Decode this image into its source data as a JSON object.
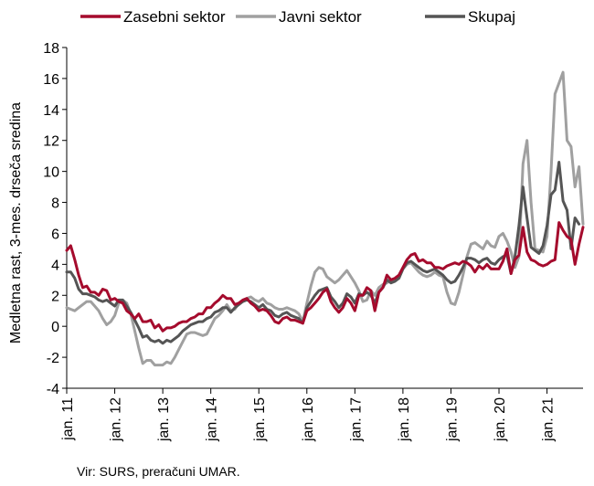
{
  "chart_data": {
    "type": "line",
    "ylabel": "Medletna rast, 3-mes. drseča sredina",
    "ylim": [
      -4,
      18
    ],
    "yticks": [
      -4,
      -2,
      0,
      2,
      4,
      6,
      8,
      10,
      12,
      14,
      16,
      18
    ],
    "xlim": [
      0,
      129
    ],
    "xticks": [
      {
        "label": "jan. 11",
        "x": 0
      },
      {
        "label": "jan. 12",
        "x": 12
      },
      {
        "label": "jan. 13",
        "x": 24
      },
      {
        "label": "jan. 14",
        "x": 36
      },
      {
        "label": "jan. 15",
        "x": 48
      },
      {
        "label": "jan. 16",
        "x": 60
      },
      {
        "label": "jan. 17",
        "x": 72
      },
      {
        "label": "jan. 18",
        "x": 84
      },
      {
        "label": "jan. 19",
        "x": 96
      },
      {
        "label": "jan. 20",
        "x": 108
      },
      {
        "label": "jan. 21",
        "x": 120
      }
    ],
    "grid": false,
    "legend_position": "top",
    "source": "Vir: SURS, preračuni UMAR.",
    "series": [
      {
        "name": "Zasebni sektor",
        "color": "#a50b2d",
        "values": [
          4.9,
          5.2,
          4.3,
          3.3,
          2.5,
          2.6,
          2.2,
          2.2,
          2.0,
          2.4,
          2.3,
          1.7,
          1.8,
          1.6,
          1.5,
          1.0,
          0.8,
          0.5,
          0.8,
          0.3,
          0.3,
          0.4,
          -0.1,
          0.1,
          -0.3,
          -0.1,
          -0.1,
          0.0,
          0.2,
          0.3,
          0.3,
          0.5,
          0.6,
          0.8,
          0.8,
          1.2,
          1.2,
          1.5,
          1.7,
          2.0,
          1.8,
          1.8,
          1.4,
          1.5,
          1.7,
          1.8,
          1.5,
          1.3,
          1.0,
          1.1,
          1.0,
          0.7,
          0.3,
          0.2,
          0.5,
          0.6,
          0.4,
          0.4,
          0.3,
          0.2,
          1.0,
          1.2,
          1.5,
          1.8,
          2.2,
          2.4,
          1.6,
          1.2,
          0.9,
          1.2,
          1.8,
          1.5,
          1.0,
          2.0,
          2.0,
          2.5,
          2.3,
          1.0,
          2.2,
          2.5,
          3.3,
          3.0,
          3.1,
          3.3,
          3.8,
          4.3,
          4.6,
          4.7,
          4.2,
          4.3,
          4.1,
          4.1,
          3.8,
          3.8,
          3.7,
          3.9,
          4.0,
          4.1,
          4.0,
          4.2,
          4.1,
          3.9,
          3.5,
          3.9,
          3.7,
          4.0,
          3.7,
          3.7,
          3.7,
          4.2,
          5.0,
          3.4,
          4.3,
          4.6,
          6.4,
          4.8,
          4.3,
          4.2,
          4.0,
          3.9,
          4.0,
          4.2,
          4.3,
          6.7,
          6.2,
          5.8,
          5.6,
          4.0,
          5.3,
          6.4
        ]
      },
      {
        "name": "Javni sektor",
        "color": "#a0a0a0",
        "values": [
          1.2,
          1.1,
          1.0,
          1.2,
          1.4,
          1.6,
          1.6,
          1.3,
          1.0,
          0.5,
          0.1,
          0.3,
          0.7,
          1.5,
          1.7,
          1.5,
          0.8,
          -0.3,
          -1.4,
          -2.4,
          -2.2,
          -2.2,
          -2.5,
          -2.5,
          -2.5,
          -2.3,
          -2.4,
          -2.0,
          -1.5,
          -1.0,
          -0.5,
          -0.4,
          -0.4,
          -0.5,
          -0.6,
          -0.5,
          0.0,
          0.5,
          0.7,
          1.0,
          1.4,
          1.0,
          1.1,
          1.5,
          1.6,
          1.8,
          1.9,
          1.7,
          1.6,
          1.8,
          1.5,
          1.4,
          1.2,
          1.1,
          1.1,
          1.2,
          1.1,
          1.0,
          0.8,
          0.3,
          1.5,
          2.6,
          3.5,
          3.8,
          3.7,
          3.2,
          3.0,
          2.8,
          3.0,
          3.3,
          3.6,
          3.2,
          2.8,
          2.3,
          1.6,
          1.7,
          2.3,
          2.0,
          2.5,
          2.7,
          2.8,
          3.0,
          2.9,
          3.1,
          3.7,
          4.0,
          4.1,
          3.8,
          3.5,
          3.3,
          3.2,
          3.3,
          3.5,
          3.3,
          3.2,
          2.2,
          1.5,
          1.4,
          2.2,
          3.3,
          4.5,
          5.3,
          5.4,
          5.2,
          5.0,
          5.5,
          5.2,
          5.1,
          5.8,
          6.0,
          5.5,
          4.8,
          3.8,
          4.5,
          10.5,
          12.0,
          8.0,
          5.0,
          4.9,
          4.8,
          5.8,
          10.0,
          15.0,
          15.7,
          16.4,
          12.0,
          11.6,
          9.0,
          10.3,
          6.6
        ]
      },
      {
        "name": "Skupaj",
        "color": "#555555",
        "values": [
          3.5,
          3.5,
          3.1,
          2.4,
          2.1,
          2.1,
          2.0,
          1.9,
          1.7,
          1.6,
          1.7,
          1.5,
          1.3,
          1.7,
          1.7,
          1.3,
          0.9,
          0.4,
          -0.1,
          -0.7,
          -0.6,
          -0.9,
          -1.0,
          -0.9,
          -1.1,
          -0.9,
          -1.0,
          -0.8,
          -0.6,
          -0.3,
          -0.1,
          0.1,
          0.2,
          0.3,
          0.3,
          0.5,
          0.6,
          0.9,
          1.0,
          1.2,
          1.2,
          0.9,
          1.2,
          1.4,
          1.6,
          1.7,
          1.6,
          1.4,
          1.2,
          1.4,
          1.1,
          1.0,
          0.7,
          0.6,
          0.8,
          0.9,
          0.7,
          0.6,
          0.5,
          0.2,
          1.2,
          1.6,
          2.0,
          2.3,
          2.4,
          2.5,
          1.9,
          1.6,
          1.2,
          1.5,
          2.1,
          1.9,
          1.5,
          2.1,
          2.0,
          2.2,
          2.0,
          1.5,
          2.2,
          2.5,
          3.0,
          2.8,
          2.9,
          3.1,
          3.7,
          4.1,
          4.2,
          4.0,
          3.8,
          3.6,
          3.5,
          3.6,
          3.7,
          3.5,
          3.3,
          3.0,
          2.8,
          2.9,
          3.3,
          3.8,
          4.4,
          4.4,
          4.3,
          4.1,
          4.3,
          4.4,
          4.1,
          4.0,
          4.3,
          4.5,
          4.6,
          3.4,
          4.5,
          6.5,
          9.0,
          7.0,
          5.1,
          4.9,
          4.7,
          5.2,
          6.5,
          8.5,
          8.8,
          10.6,
          8.1,
          7.5,
          5.0,
          7.0,
          6.6
        ]
      }
    ]
  }
}
